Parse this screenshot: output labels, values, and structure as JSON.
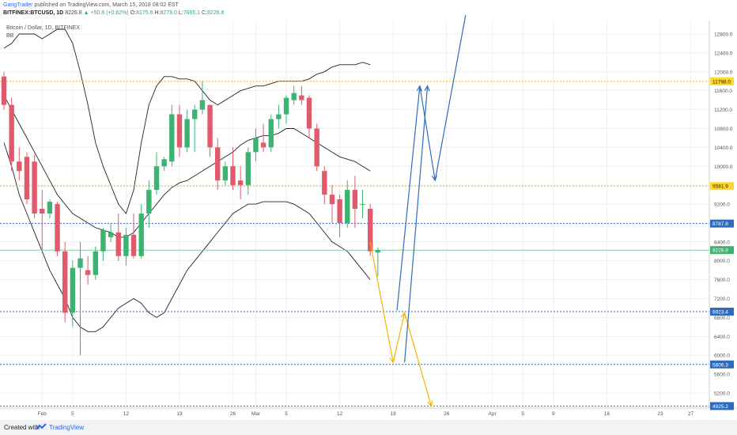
{
  "header": {
    "author": "GangTrader",
    "published": " published on TradingView.com, March 15, 2018 08:02 EST",
    "symbol": "BITFINEX:BTCUSD, 1D",
    "last": "8226.8",
    "change": "+50.8 (+0.62%)",
    "o_label": "O:",
    "o": "8175.6",
    "h_label": "H:",
    "h": "8279.0",
    "l_label": "L:",
    "l": "7665.1",
    "c_label": "C:",
    "c": "8226.8"
  },
  "legend": {
    "name": "Bitcoin / Dollar, 1D, BITFINEX",
    "indicator": "BB"
  },
  "footer": {
    "created": "Created with",
    "brand": "TradingView"
  },
  "colors": {
    "up": "#3cb371",
    "down": "#e05a6b",
    "line": "#222222",
    "orange": "#f5b400",
    "blue": "#2e6bbf",
    "grid": "#e6e6e6"
  },
  "chart_data": {
    "type": "candlestick",
    "ylim": [
      4800,
      12900
    ],
    "y_ticks": [
      5200,
      5600,
      6000,
      6400,
      6800,
      7200,
      7600,
      8000,
      8400,
      8800,
      9200,
      9600,
      10000,
      10400,
      10800,
      11200,
      11600,
      12000,
      12400,
      12800
    ],
    "y_tick_labels": [
      "5200.0",
      "5600.0",
      "6000.0",
      "6400.0",
      "6800.0",
      "7200.0",
      "7600.0",
      "8000.0",
      "8400.0",
      "8800.0",
      "9200.0",
      "9600.0",
      "10000.0",
      "10400.0",
      "10800.0",
      "11200.0",
      "11600.0",
      "12000.0",
      "12400.0",
      "12800.0"
    ],
    "x_ticks": [
      {
        "label": "Feb",
        "day": 31
      },
      {
        "label": "5",
        "day": 35
      },
      {
        "label": "12",
        "day": 42
      },
      {
        "label": "19",
        "day": 49
      },
      {
        "label": "26",
        "day": 56
      },
      {
        "label": "Mar",
        "day": 59
      },
      {
        "label": "5",
        "day": 63
      },
      {
        "label": "12",
        "day": 70
      },
      {
        "label": "19",
        "day": 77
      },
      {
        "label": "26",
        "day": 84
      },
      {
        "label": "Apr",
        "day": 90
      },
      {
        "label": "5",
        "day": 94
      },
      {
        "label": "9",
        "day": 98
      },
      {
        "label": "16",
        "day": 105
      },
      {
        "label": "23",
        "day": 112
      },
      {
        "label": "27",
        "day": 116
      }
    ],
    "candles": [
      {
        "day": 26,
        "o": 11900,
        "h": 12000,
        "l": 11200,
        "c": 11300
      },
      {
        "day": 27,
        "o": 11300,
        "h": 11450,
        "l": 9900,
        "c": 10100
      },
      {
        "day": 28,
        "o": 10100,
        "h": 10400,
        "l": 9700,
        "c": 9900
      },
      {
        "day": 29,
        "o": 10200,
        "h": 10300,
        "l": 9200,
        "c": 9300
      },
      {
        "day": 30,
        "o": 10100,
        "h": 10250,
        "l": 8900,
        "c": 9000
      },
      {
        "day": 31,
        "o": 9100,
        "h": 9500,
        "l": 8200,
        "c": 9000
      },
      {
        "day": 32,
        "o": 9000,
        "h": 9300,
        "l": 8900,
        "c": 9250
      },
      {
        "day": 33,
        "o": 9200,
        "h": 9250,
        "l": 8100,
        "c": 8200
      },
      {
        "day": 34,
        "o": 8200,
        "h": 8400,
        "l": 6700,
        "c": 6900
      },
      {
        "day": 35,
        "o": 6900,
        "h": 8000,
        "l": 6600,
        "c": 7850
      },
      {
        "day": 36,
        "o": 7850,
        "h": 8400,
        "l": 6000,
        "c": 8050
      },
      {
        "day": 37,
        "o": 7800,
        "h": 8100,
        "l": 7500,
        "c": 7700
      },
      {
        "day": 38,
        "o": 7700,
        "h": 8300,
        "l": 7600,
        "c": 8200
      },
      {
        "day": 39,
        "o": 8200,
        "h": 8700,
        "l": 8000,
        "c": 8650
      },
      {
        "day": 40,
        "o": 8500,
        "h": 8800,
        "l": 8400,
        "c": 8600
      },
      {
        "day": 41,
        "o": 8600,
        "h": 9000,
        "l": 8000,
        "c": 8100
      },
      {
        "day": 42,
        "o": 8100,
        "h": 8700,
        "l": 7900,
        "c": 8550
      },
      {
        "day": 43,
        "o": 8550,
        "h": 9000,
        "l": 8050,
        "c": 8100
      },
      {
        "day": 44,
        "o": 8100,
        "h": 9200,
        "l": 8050,
        "c": 9000
      },
      {
        "day": 45,
        "o": 9000,
        "h": 9700,
        "l": 8700,
        "c": 9500
      },
      {
        "day": 46,
        "o": 9500,
        "h": 10300,
        "l": 9400,
        "c": 10000
      },
      {
        "day": 47,
        "o": 10000,
        "h": 10200,
        "l": 9900,
        "c": 10150
      },
      {
        "day": 48,
        "o": 10100,
        "h": 11300,
        "l": 10000,
        "c": 11100
      },
      {
        "day": 49,
        "o": 11100,
        "h": 11300,
        "l": 10200,
        "c": 10400
      },
      {
        "day": 50,
        "o": 10400,
        "h": 11200,
        "l": 10300,
        "c": 11000
      },
      {
        "day": 51,
        "o": 11000,
        "h": 11300,
        "l": 10300,
        "c": 11200
      },
      {
        "day": 52,
        "o": 11200,
        "h": 11800,
        "l": 11100,
        "c": 11400
      },
      {
        "day": 53,
        "o": 11300,
        "h": 11300,
        "l": 10200,
        "c": 10400
      },
      {
        "day": 54,
        "o": 10400,
        "h": 10600,
        "l": 9500,
        "c": 9700
      },
      {
        "day": 55,
        "o": 9700,
        "h": 10100,
        "l": 9600,
        "c": 10000
      },
      {
        "day": 56,
        "o": 10000,
        "h": 10400,
        "l": 9500,
        "c": 9600
      },
      {
        "day": 57,
        "o": 9700,
        "h": 10000,
        "l": 9300,
        "c": 9600
      },
      {
        "day": 58,
        "o": 9600,
        "h": 10400,
        "l": 9400,
        "c": 10300
      },
      {
        "day": 59,
        "o": 10300,
        "h": 10800,
        "l": 10100,
        "c": 10600
      },
      {
        "day": 60,
        "o": 10500,
        "h": 10900,
        "l": 10300,
        "c": 10400
      },
      {
        "day": 61,
        "o": 10400,
        "h": 11100,
        "l": 10300,
        "c": 11000
      },
      {
        "day": 62,
        "o": 11000,
        "h": 11300,
        "l": 10800,
        "c": 11100
      },
      {
        "day": 63,
        "o": 11100,
        "h": 11500,
        "l": 10900,
        "c": 11450
      },
      {
        "day": 64,
        "o": 11400,
        "h": 11700,
        "l": 11300,
        "c": 11550
      },
      {
        "day": 65,
        "o": 11500,
        "h": 11700,
        "l": 11300,
        "c": 11400
      },
      {
        "day": 66,
        "o": 11450,
        "h": 11500,
        "l": 10600,
        "c": 10800
      },
      {
        "day": 67,
        "o": 10800,
        "h": 10900,
        "l": 9900,
        "c": 10000
      },
      {
        "day": 68,
        "o": 9900,
        "h": 10000,
        "l": 9200,
        "c": 9400
      },
      {
        "day": 69,
        "o": 9400,
        "h": 9600,
        "l": 8800,
        "c": 9200
      },
      {
        "day": 70,
        "o": 9300,
        "h": 9400,
        "l": 8500,
        "c": 8800
      },
      {
        "day": 71,
        "o": 8800,
        "h": 9700,
        "l": 8700,
        "c": 9500
      },
      {
        "day": 72,
        "o": 9500,
        "h": 9800,
        "l": 8700,
        "c": 9100
      },
      {
        "day": 73,
        "o": 9200,
        "h": 9500,
        "l": 8900,
        "c": 9200
      },
      {
        "day": 74,
        "o": 9100,
        "h": 9200,
        "l": 8100,
        "c": 8200
      },
      {
        "day": 75,
        "o": 8175.6,
        "h": 8279.0,
        "l": 7665.1,
        "c": 8226.8
      }
    ],
    "bollinger": {
      "upper": [
        [
          26,
          12500
        ],
        [
          27,
          12600
        ],
        [
          28,
          12800
        ],
        [
          29,
          12800
        ],
        [
          30,
          12800
        ],
        [
          31,
          12700
        ],
        [
          32,
          12800
        ],
        [
          33,
          12900
        ],
        [
          34,
          12900
        ],
        [
          35,
          12600
        ],
        [
          36,
          12000
        ],
        [
          37,
          11300
        ],
        [
          38,
          10500
        ],
        [
          39,
          10000
        ],
        [
          40,
          9600
        ],
        [
          41,
          9200
        ],
        [
          42,
          9000
        ],
        [
          43,
          9500
        ],
        [
          44,
          10500
        ],
        [
          45,
          11300
        ],
        [
          46,
          11700
        ],
        [
          47,
          11900
        ],
        [
          48,
          11900
        ],
        [
          49,
          11850
        ],
        [
          50,
          11850
        ],
        [
          51,
          11800
        ],
        [
          52,
          11600
        ],
        [
          53,
          11400
        ],
        [
          54,
          11300
        ],
        [
          55,
          11400
        ],
        [
          56,
          11500
        ],
        [
          57,
          11600
        ],
        [
          58,
          11650
        ],
        [
          59,
          11700
        ],
        [
          60,
          11700
        ],
        [
          61,
          11750
        ],
        [
          62,
          11800
        ],
        [
          63,
          11800
        ],
        [
          64,
          11800
        ],
        [
          65,
          11800
        ],
        [
          66,
          11850
        ],
        [
          67,
          11950
        ],
        [
          68,
          12000
        ],
        [
          69,
          12100
        ],
        [
          70,
          12150
        ],
        [
          71,
          12150
        ],
        [
          72,
          12150
        ],
        [
          73,
          12200
        ],
        [
          74,
          12150
        ]
      ],
      "middle": [
        [
          26,
          11500
        ],
        [
          27,
          11200
        ],
        [
          28,
          10900
        ],
        [
          29,
          10600
        ],
        [
          30,
          10300
        ],
        [
          31,
          10000
        ],
        [
          32,
          9700
        ],
        [
          33,
          9400
        ],
        [
          34,
          9200
        ],
        [
          35,
          9000
        ],
        [
          36,
          8900
        ],
        [
          37,
          8800
        ],
        [
          38,
          8700
        ],
        [
          39,
          8650
        ],
        [
          40,
          8600
        ],
        [
          41,
          8500
        ],
        [
          42,
          8500
        ],
        [
          43,
          8600
        ],
        [
          44,
          8800
        ],
        [
          45,
          9000
        ],
        [
          46,
          9200
        ],
        [
          47,
          9400
        ],
        [
          48,
          9550
        ],
        [
          49,
          9650
        ],
        [
          50,
          9700
        ],
        [
          51,
          9800
        ],
        [
          52,
          9900
        ],
        [
          53,
          10000
        ],
        [
          54,
          10100
        ],
        [
          55,
          10200
        ],
        [
          56,
          10300
        ],
        [
          57,
          10450
        ],
        [
          58,
          10550
        ],
        [
          59,
          10600
        ],
        [
          60,
          10650
        ],
        [
          61,
          10650
        ],
        [
          62,
          10700
        ],
        [
          63,
          10800
        ],
        [
          64,
          10800
        ],
        [
          65,
          10700
        ],
        [
          66,
          10600
        ],
        [
          67,
          10500
        ],
        [
          68,
          10400
        ],
        [
          69,
          10300
        ],
        [
          70,
          10200
        ],
        [
          71,
          10150
        ],
        [
          72,
          10100
        ],
        [
          73,
          10000
        ],
        [
          74,
          9900
        ]
      ],
      "lower": [
        [
          26,
          10500
        ],
        [
          27,
          10000
        ],
        [
          28,
          9400
        ],
        [
          29,
          9000
        ],
        [
          30,
          8600
        ],
        [
          31,
          8200
        ],
        [
          32,
          7800
        ],
        [
          33,
          7500
        ],
        [
          34,
          7200
        ],
        [
          35,
          6800
        ],
        [
          36,
          6600
        ],
        [
          37,
          6500
        ],
        [
          38,
          6500
        ],
        [
          39,
          6600
        ],
        [
          40,
          6800
        ],
        [
          41,
          7000
        ],
        [
          42,
          7100
        ],
        [
          43,
          7200
        ],
        [
          44,
          7100
        ],
        [
          45,
          6900
        ],
        [
          46,
          6800
        ],
        [
          47,
          6900
        ],
        [
          48,
          7200
        ],
        [
          49,
          7500
        ],
        [
          50,
          7800
        ],
        [
          51,
          8000
        ],
        [
          52,
          8200
        ],
        [
          53,
          8400
        ],
        [
          54,
          8600
        ],
        [
          55,
          8800
        ],
        [
          56,
          9000
        ],
        [
          57,
          9100
        ],
        [
          58,
          9200
        ],
        [
          59,
          9200
        ],
        [
          60,
          9250
        ],
        [
          61,
          9250
        ],
        [
          62,
          9250
        ],
        [
          63,
          9250
        ],
        [
          64,
          9200
        ],
        [
          65,
          9100
        ],
        [
          66,
          9000
        ],
        [
          67,
          8800
        ],
        [
          68,
          8600
        ],
        [
          69,
          8400
        ],
        [
          70,
          8300
        ],
        [
          71,
          8200
        ],
        [
          72,
          8000
        ],
        [
          73,
          7800
        ],
        [
          74,
          7600
        ]
      ]
    },
    "horizontal_levels": [
      {
        "price": 11798.0,
        "label": "11798.0",
        "style": "orange"
      },
      {
        "price": 9581.9,
        "label": "9581.9",
        "style": "orange"
      },
      {
        "price": 8787.8,
        "label": "8787.8",
        "style": "blue"
      },
      {
        "price": 8226.8,
        "label": "8226.8",
        "style": "last"
      },
      {
        "price": 6923.4,
        "label": "6923.4",
        "style": "blue"
      },
      {
        "price": 5806.3,
        "label": "5806.3",
        "style": "blue"
      },
      {
        "price": 4925.2,
        "label": "4925.2",
        "style": "blue"
      }
    ],
    "projections": [
      {
        "color": "orange",
        "points": [
          [
            74,
            8400
          ],
          [
            77,
            5850
          ],
          [
            78.5,
            6900
          ],
          [
            82,
            4925
          ]
        ]
      },
      {
        "color": "blue",
        "points": [
          [
            77.5,
            6950
          ],
          [
            80.5,
            11700
          ],
          [
            82.5,
            9700
          ],
          [
            86.5,
            13200
          ]
        ]
      },
      {
        "color": "blue",
        "points": [
          [
            78.5,
            5850
          ],
          [
            81.5,
            11700
          ]
        ]
      }
    ]
  }
}
